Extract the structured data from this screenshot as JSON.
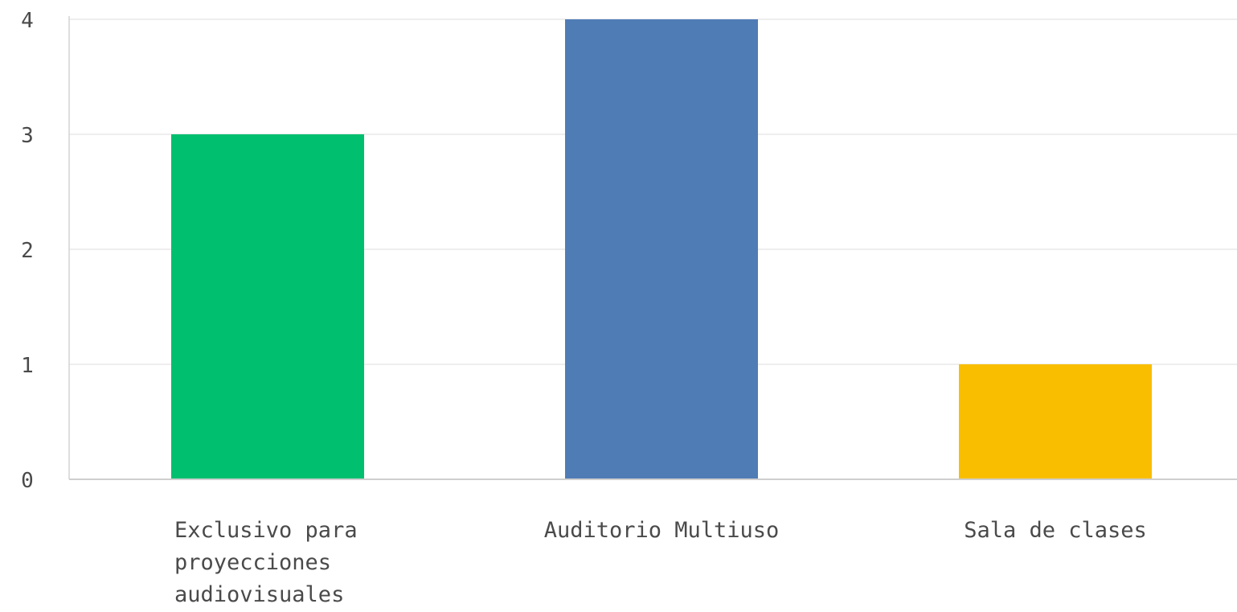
{
  "chart_data": {
    "type": "bar",
    "categories": [
      [
        "Exclusivo para",
        "proyecciones",
        "audiovisuales"
      ],
      [
        "Auditorio Multiuso"
      ],
      [
        "Sala de clases"
      ]
    ],
    "values": [
      3,
      4,
      1
    ],
    "bar_colors": [
      "#00bf6f",
      "#507cb6",
      "#f9be00"
    ],
    "y_ticks": [
      "0",
      "1",
      "2",
      "3",
      "4"
    ],
    "ylim": [
      0,
      4
    ],
    "grid": true,
    "legend": "none",
    "title": "",
    "xlabel": "",
    "ylabel": ""
  }
}
